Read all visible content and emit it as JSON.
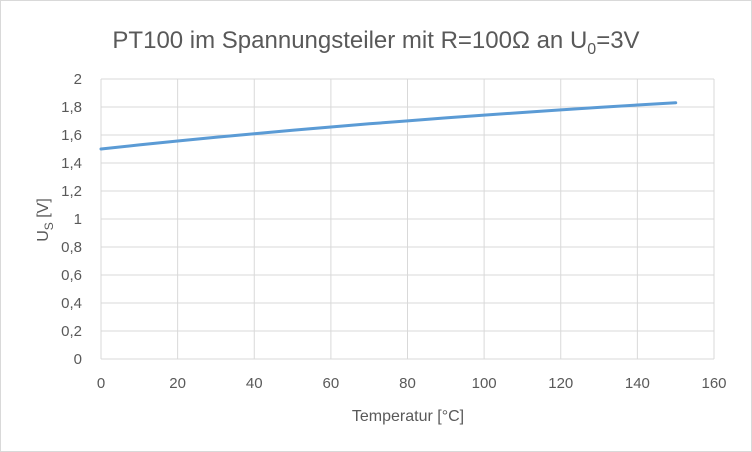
{
  "chart_data": {
    "type": "line",
    "title": {
      "main": "PT100 im Spannungsteiler mit R=100Ω an U",
      "sub": "0",
      "tail": "=3V"
    },
    "xlabel": "Temperatur [°C]",
    "ylabel": {
      "main": "U",
      "sub": "S",
      "tail": " [V]"
    },
    "xlim": [
      0,
      160
    ],
    "ylim": [
      0,
      2
    ],
    "x_ticks": [
      "0",
      "20",
      "40",
      "60",
      "80",
      "100",
      "120",
      "140",
      "160"
    ],
    "y_ticks": [
      "0",
      "0,2",
      "0,4",
      "0,6",
      "0,8",
      "1",
      "1,2",
      "1,4",
      "1,6",
      "1,8",
      "2"
    ],
    "x_tick_values": [
      0,
      20,
      40,
      60,
      80,
      100,
      120,
      140,
      160
    ],
    "y_tick_values": [
      0,
      0.2,
      0.4,
      0.6,
      0.8,
      1.0,
      1.2,
      1.4,
      1.6,
      1.8,
      2.0
    ],
    "grid": true,
    "series": [
      {
        "color": "#5b9bd5",
        "x": [
          0,
          10,
          20,
          30,
          40,
          50,
          60,
          70,
          80,
          90,
          100,
          110,
          120,
          130,
          140,
          150
        ],
        "y": [
          1.5,
          1.529,
          1.557,
          1.584,
          1.609,
          1.634,
          1.657,
          1.68,
          1.701,
          1.722,
          1.742,
          1.761,
          1.779,
          1.797,
          1.814,
          1.83
        ]
      }
    ]
  }
}
